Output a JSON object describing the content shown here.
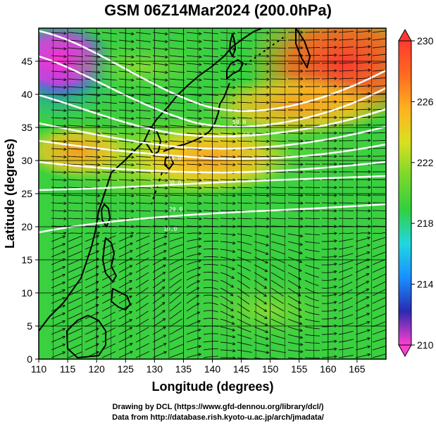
{
  "title": "GSM 06Z14Mar2024 (200.0hPa)",
  "xlabel": "Longitude (degrees)",
  "ylabel": "Latitude  (degrees)",
  "credits": [
    "Drawing by DCL (https://www.gfd-dennou.org/library/dcl/)",
    "Data from http://database.rish.kyoto-u.ac.jp/arch/jmadata/"
  ],
  "map": {
    "lon_range": [
      110,
      170
    ],
    "lat_range": [
      0,
      50
    ],
    "x_ticks": [
      "110",
      "115",
      "120",
      "125",
      "130",
      "135",
      "140",
      "145",
      "150",
      "155",
      "160",
      "165"
    ],
    "y_ticks": [
      "0",
      "5",
      "10",
      "15",
      "20",
      "25",
      "30",
      "35",
      "40",
      "45"
    ],
    "grid": true,
    "field": "temperature",
    "overlays": [
      "streamlines",
      "wind-speed-contours",
      "coastlines"
    ]
  },
  "colorbar": {
    "min": 210,
    "max": 230,
    "labels": [
      "230",
      "226",
      "222",
      "218",
      "214",
      "210"
    ],
    "stops": [
      "#ff3fd0",
      "#2a2ab0",
      "#1890ff",
      "#20d8e0",
      "#30d040",
      "#7ad82a",
      "#d8e020",
      "#ffb020",
      "#ff6a20",
      "#ff3a30"
    ]
  }
}
